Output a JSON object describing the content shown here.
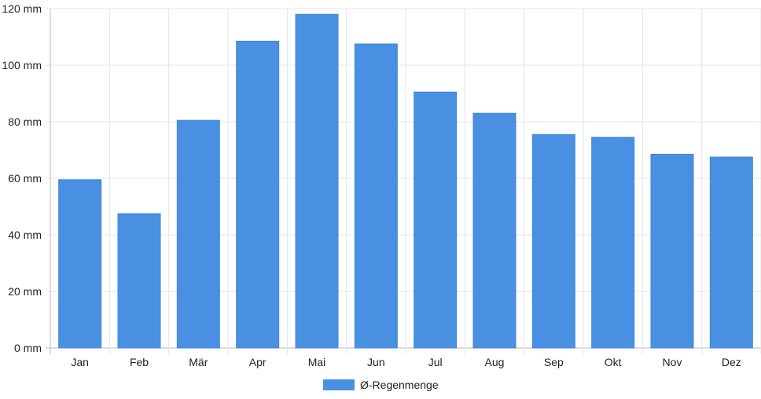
{
  "chart_data": {
    "type": "bar",
    "categories": [
      "Jan",
      "Feb",
      "Mär",
      "Apr",
      "Mai",
      "Jun",
      "Jul",
      "Aug",
      "Sep",
      "Okt",
      "Nov",
      "Dez"
    ],
    "series": [
      {
        "name": "Ø-Regenmenge",
        "values": [
          59.5,
          47.5,
          80.5,
          108.5,
          118,
          107.5,
          90.5,
          83,
          75.5,
          74.5,
          68.5,
          67.5
        ],
        "color": "#4a90e2"
      }
    ],
    "y_ticks": [
      "0 mm",
      "20 mm",
      "40 mm",
      "60 mm",
      "80 mm",
      "100 mm",
      "120 mm"
    ],
    "ylim": [
      0,
      120
    ],
    "grid": true,
    "legend_position": "bottom"
  }
}
